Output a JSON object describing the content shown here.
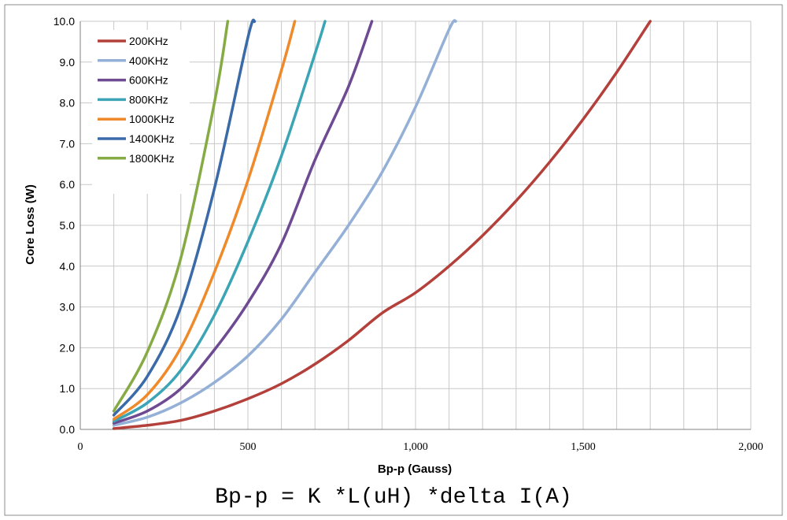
{
  "chart_data": {
    "type": "line",
    "title": "",
    "xlabel": "Bp-p (Gauss)",
    "ylabel": "Core Loss (W)",
    "xlim": [
      0,
      2000
    ],
    "ylim": [
      0,
      10
    ],
    "x_ticks": [
      "0",
      "500",
      "1,000",
      "1,500",
      "2,000"
    ],
    "x_tick_values": [
      0,
      500,
      1000,
      1500,
      2000
    ],
    "y_ticks": [
      "0.0",
      "1.0",
      "2.0",
      "3.0",
      "4.0",
      "5.0",
      "6.0",
      "7.0",
      "8.0",
      "9.0",
      "10.0"
    ],
    "grid": {
      "vertical_minor_step": 100,
      "horizontal_step": 1
    },
    "legend_position": "top-left",
    "series": [
      {
        "name": "200KHz",
        "color": "#b3403a",
        "points": [
          [
            100,
            0.02
          ],
          [
            200,
            0.1
          ],
          [
            300,
            0.22
          ],
          [
            400,
            0.45
          ],
          [
            500,
            0.75
          ],
          [
            600,
            1.12
          ],
          [
            700,
            1.6
          ],
          [
            800,
            2.18
          ],
          [
            900,
            2.85
          ],
          [
            1000,
            3.35
          ],
          [
            1100,
            4.0
          ],
          [
            1200,
            4.75
          ],
          [
            1300,
            5.6
          ],
          [
            1400,
            6.55
          ],
          [
            1500,
            7.6
          ],
          [
            1600,
            8.75
          ],
          [
            1700,
            10.0
          ]
        ]
      },
      {
        "name": "400KHz",
        "color": "#95b0d6",
        "points": [
          [
            100,
            0.1
          ],
          [
            200,
            0.3
          ],
          [
            300,
            0.65
          ],
          [
            400,
            1.15
          ],
          [
            500,
            1.8
          ],
          [
            600,
            2.7
          ],
          [
            700,
            3.85
          ],
          [
            800,
            5.0
          ],
          [
            900,
            6.3
          ],
          [
            1000,
            7.9
          ],
          [
            1100,
            9.8
          ],
          [
            1120,
            10.0
          ]
        ]
      },
      {
        "name": "600KHz",
        "color": "#6e4a92",
        "points": [
          [
            100,
            0.15
          ],
          [
            200,
            0.45
          ],
          [
            300,
            1.0
          ],
          [
            400,
            1.95
          ],
          [
            500,
            3.1
          ],
          [
            600,
            4.55
          ],
          [
            700,
            6.6
          ],
          [
            800,
            8.4
          ],
          [
            870,
            10.0
          ]
        ]
      },
      {
        "name": "800KHz",
        "color": "#3ba4b5",
        "points": [
          [
            100,
            0.2
          ],
          [
            200,
            0.65
          ],
          [
            300,
            1.45
          ],
          [
            400,
            2.8
          ],
          [
            500,
            4.6
          ],
          [
            600,
            6.7
          ],
          [
            700,
            9.2
          ],
          [
            730,
            10.0
          ]
        ]
      },
      {
        "name": "1000KHz",
        "color": "#ef8a2b",
        "points": [
          [
            100,
            0.25
          ],
          [
            200,
            0.85
          ],
          [
            300,
            2.0
          ],
          [
            400,
            3.85
          ],
          [
            500,
            6.1
          ],
          [
            600,
            8.8
          ],
          [
            640,
            10.0
          ]
        ]
      },
      {
        "name": "1400KHz",
        "color": "#3a6aa8",
        "points": [
          [
            100,
            0.35
          ],
          [
            200,
            1.3
          ],
          [
            300,
            3.0
          ],
          [
            400,
            5.9
          ],
          [
            500,
            9.6
          ],
          [
            520,
            10.0
          ]
        ]
      },
      {
        "name": "1800KHz",
        "color": "#86ab45",
        "points": [
          [
            100,
            0.45
          ],
          [
            200,
            1.9
          ],
          [
            300,
            4.2
          ],
          [
            400,
            8.0
          ],
          [
            440,
            10.0
          ]
        ]
      }
    ]
  },
  "formula": "Bp-p = K *L(uH) *delta I(A)"
}
